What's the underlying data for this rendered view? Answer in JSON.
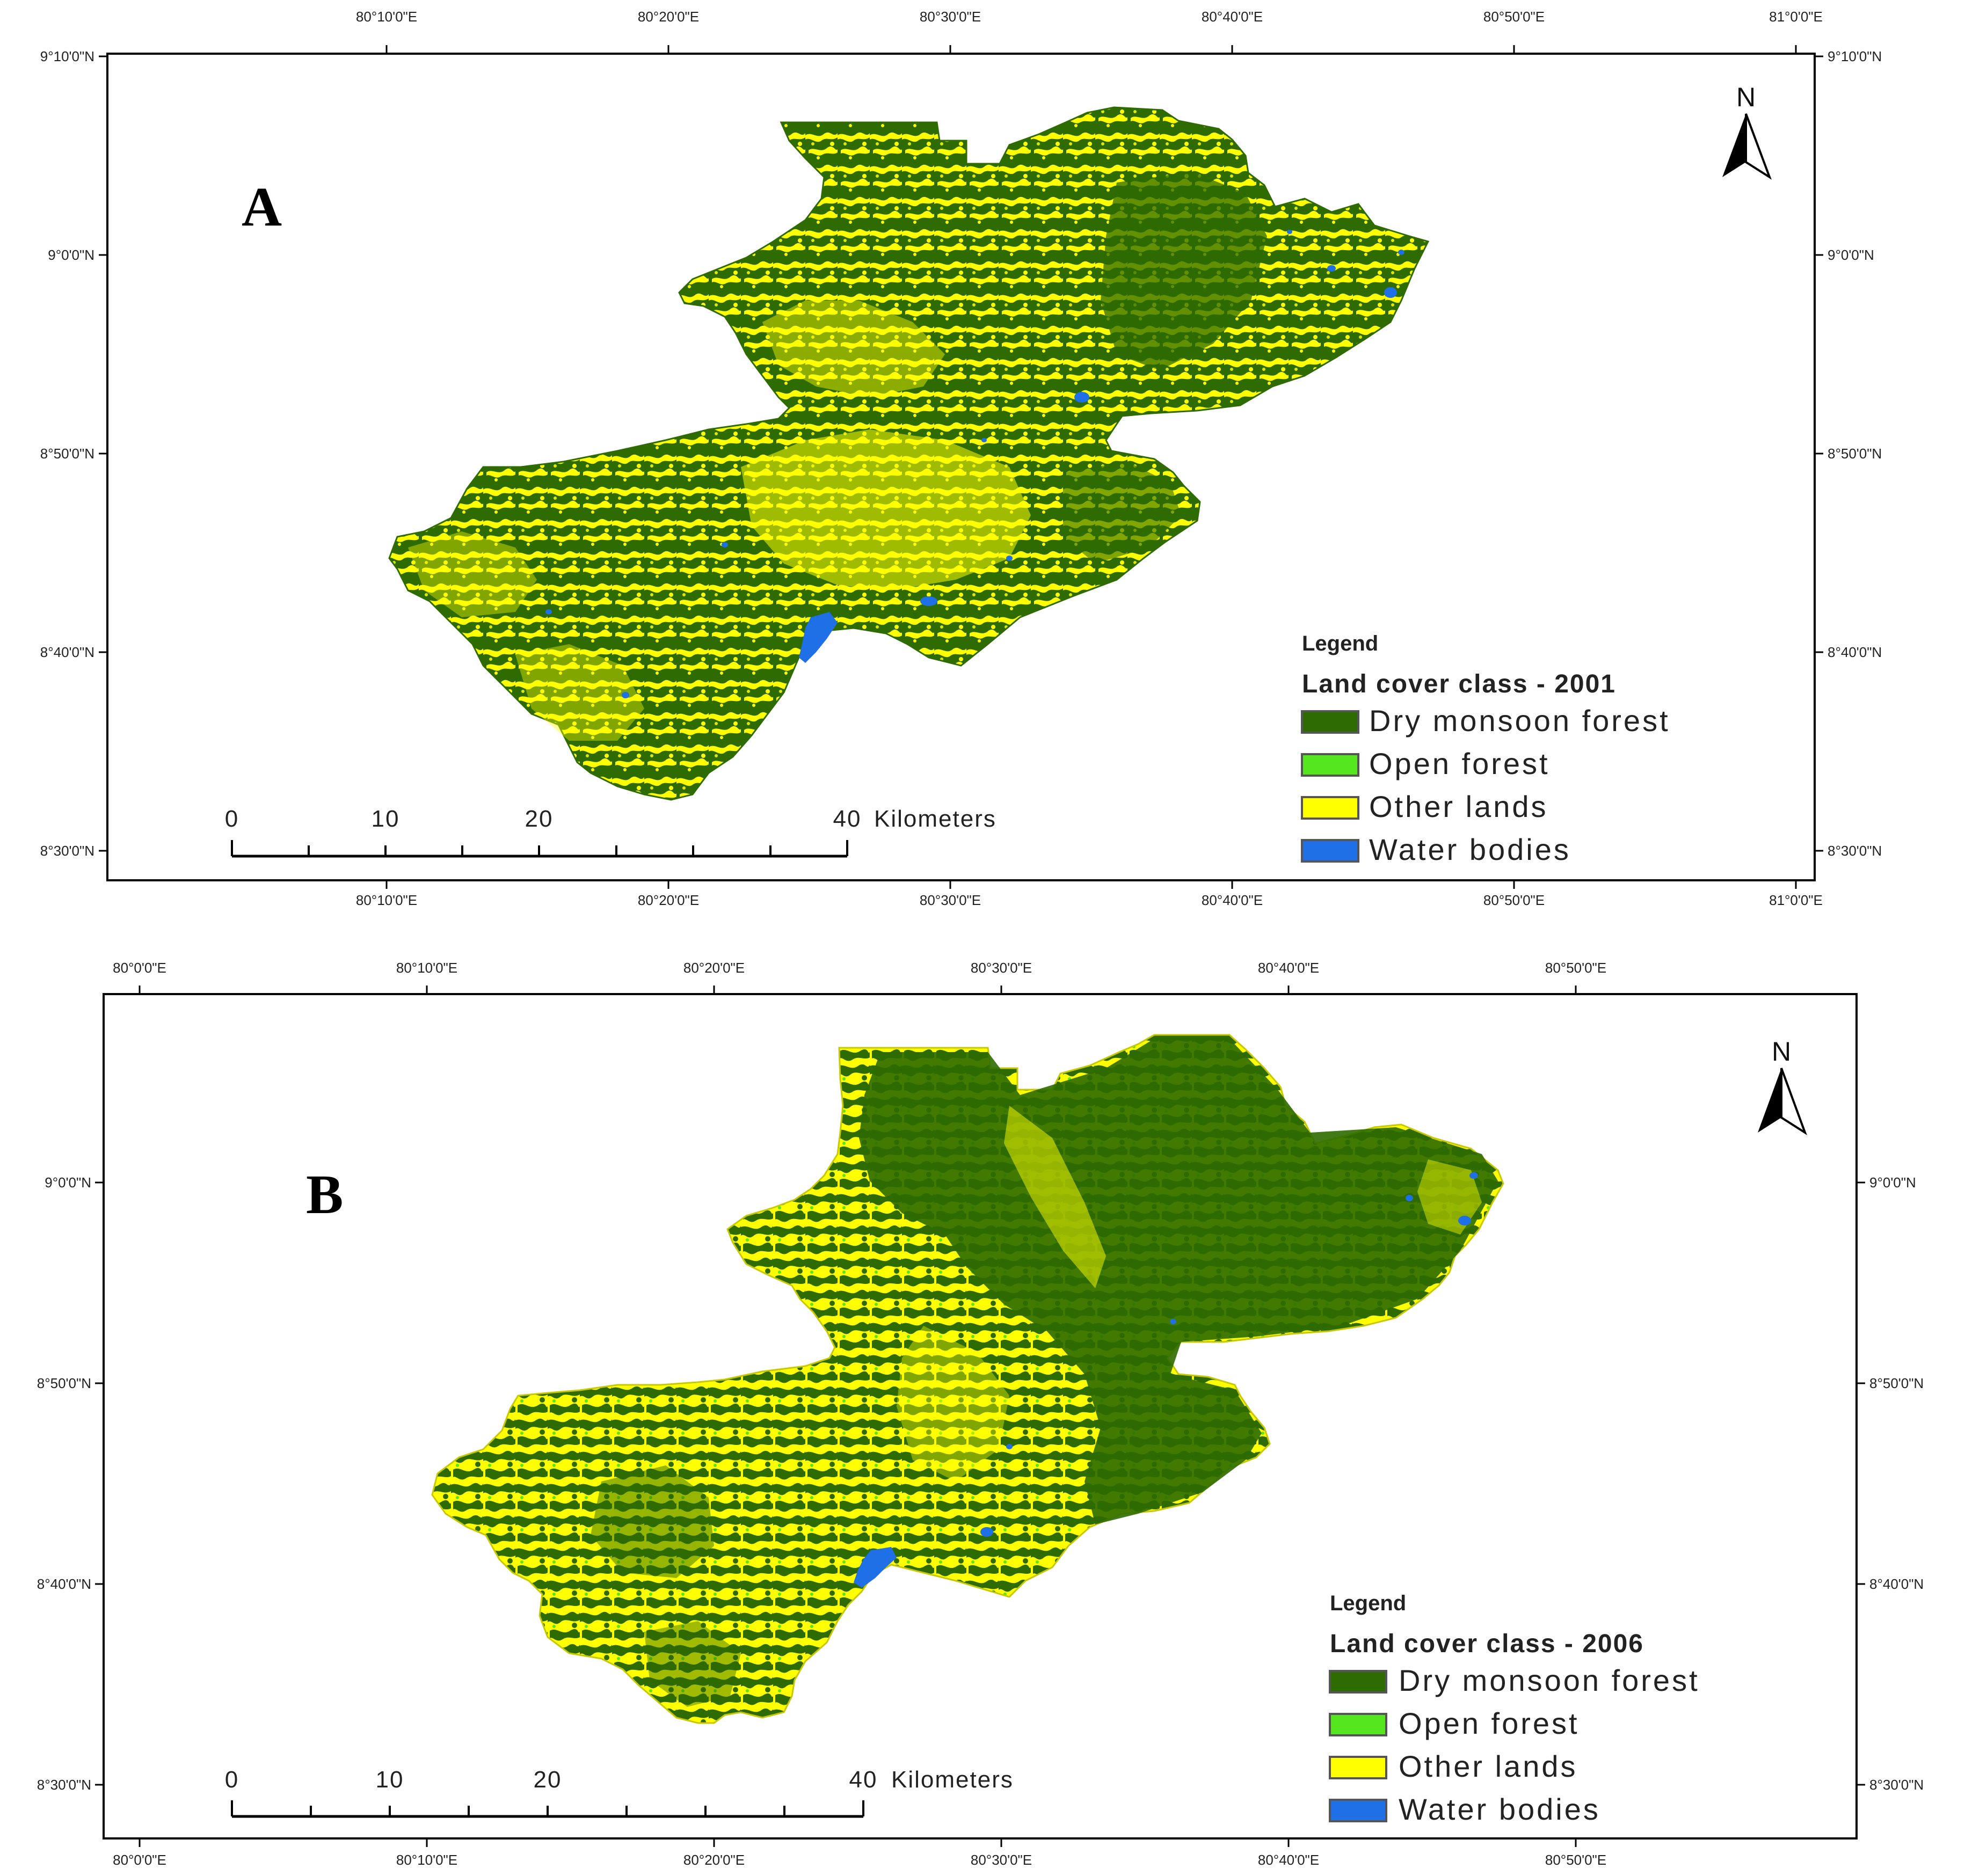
{
  "colors": {
    "dry_monsoon_forest": "#2e6b00",
    "open_forest": "#55e61f",
    "other_lands": "#ffff00",
    "water_bodies": "#1f6fe6",
    "frame": "#000000"
  },
  "panel_a": {
    "letter": "A",
    "lon_top": [
      "80°10'0\"E",
      "80°20'0\"E",
      "80°30'0\"E",
      "80°40'0\"E",
      "80°50'0\"E",
      "81°0'0\"E"
    ],
    "lon_bottom": [
      "80°10'0\"E",
      "80°20'0\"E",
      "80°30'0\"E",
      "80°40'0\"E",
      "80°50'0\"E",
      "81°0'0\"E"
    ],
    "lat_left": [
      "9°10'0\"N",
      "9°0'0\"N",
      "8°50'0\"N",
      "8°40'0\"N",
      "8°30'0\"N"
    ],
    "lat_right": [
      "9°10'0\"N",
      "9°0'0\"N",
      "8°50'0\"N",
      "8°40'0\"N",
      "8°30'0\"N"
    ],
    "legend": {
      "title": "Legend",
      "subtitle": "Land cover class - 2001",
      "items": [
        "Dry monsoon forest",
        "Open forest",
        "Other lands",
        "Water bodies"
      ]
    },
    "scale": {
      "labels": [
        "0",
        "10",
        "20",
        "40"
      ],
      "unit": "Kilometers"
    },
    "north": "N"
  },
  "panel_b": {
    "letter": "B",
    "lon_top": [
      "80°0'0\"E",
      "80°10'0\"E",
      "80°20'0\"E",
      "80°30'0\"E",
      "80°40'0\"E",
      "80°50'0\"E"
    ],
    "lon_bottom": [
      "80°0'0\"E",
      "80°10'0\"E",
      "80°20'0\"E",
      "80°30'0\"E",
      "80°40'0\"E",
      "80°50'0\"E"
    ],
    "lat_left": [
      "9°0'0\"N",
      "8°50'0\"N",
      "8°40'0\"N",
      "8°30'0\"N"
    ],
    "lat_right": [
      "9°0'0\"N",
      "8°50'0\"N",
      "8°40'0\"N",
      "8°30'0\"N"
    ],
    "legend": {
      "title": "Legend",
      "subtitle": "Land cover class - 2006",
      "items": [
        "Dry monsoon forest",
        "Open forest",
        "Other lands",
        "Water bodies"
      ]
    },
    "scale": {
      "labels": [
        "0",
        "10",
        "20",
        "40"
      ],
      "unit": "Kilometers"
    },
    "north": "N"
  }
}
